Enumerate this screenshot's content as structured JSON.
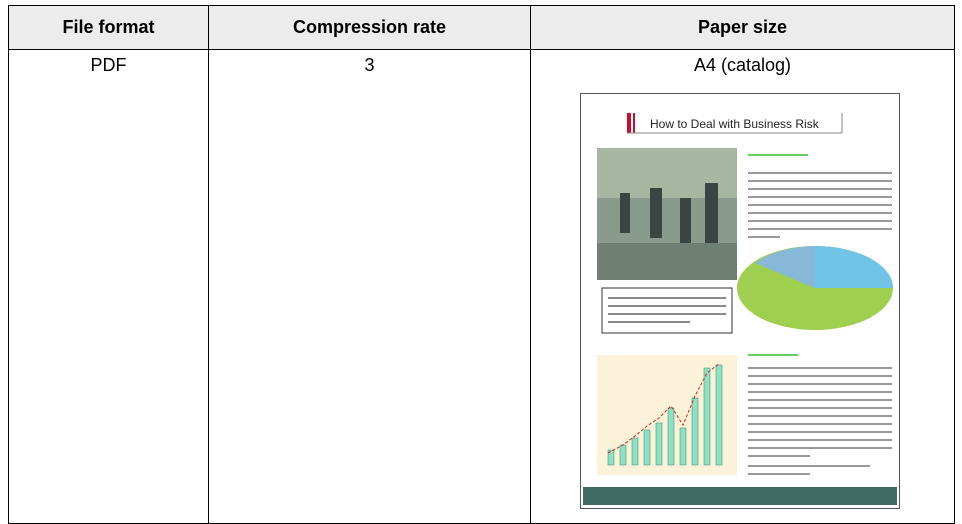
{
  "table": {
    "header": [
      "File format",
      "Compression rate",
      "Paper size"
    ],
    "rows": [
      [
        "PDF",
        "3",
        "A4 (catalog)"
      ]
    ]
  },
  "thumbnail": {
    "title": "How to Deal with Business Risk"
  }
}
